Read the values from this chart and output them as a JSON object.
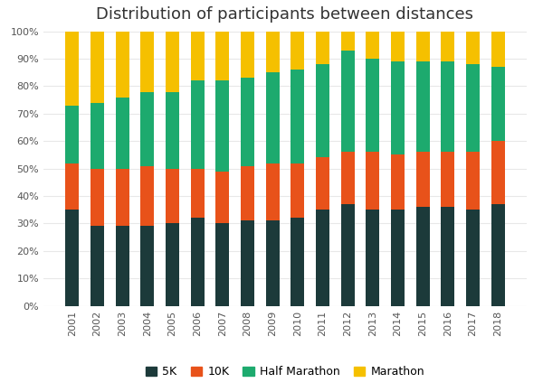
{
  "title": "Distribution of participants between distances",
  "years": [
    2001,
    2002,
    2003,
    2004,
    2005,
    2006,
    2007,
    2008,
    2009,
    2010,
    2011,
    2012,
    2013,
    2014,
    2015,
    2016,
    2017,
    2018
  ],
  "5K": [
    35,
    29,
    29,
    29,
    30,
    32,
    30,
    31,
    31,
    32,
    35,
    37,
    35,
    35,
    36,
    36,
    35,
    37
  ],
  "10K": [
    17,
    21,
    21,
    22,
    20,
    18,
    19,
    20,
    21,
    20,
    19,
    19,
    21,
    20,
    20,
    20,
    21,
    23
  ],
  "Half Marathon": [
    21,
    24,
    26,
    27,
    28,
    32,
    33,
    32,
    33,
    34,
    34,
    37,
    34,
    34,
    33,
    33,
    32,
    27
  ],
  "Marathon": [
    27,
    26,
    24,
    22,
    22,
    18,
    18,
    17,
    15,
    14,
    12,
    7,
    10,
    11,
    11,
    11,
    12,
    13
  ],
  "colors": {
    "5K": "#1c3a3a",
    "10K": "#e8521a",
    "Half Marathon": "#1daa6e",
    "Marathon": "#f5c000"
  },
  "background_color": "#ffffff",
  "title_fontsize": 13,
  "tick_fontsize": 8,
  "legend_fontsize": 9,
  "bar_width": 0.55,
  "legend_labels": [
    "5K",
    "10K",
    "Half Marathon",
    "Marathon"
  ]
}
